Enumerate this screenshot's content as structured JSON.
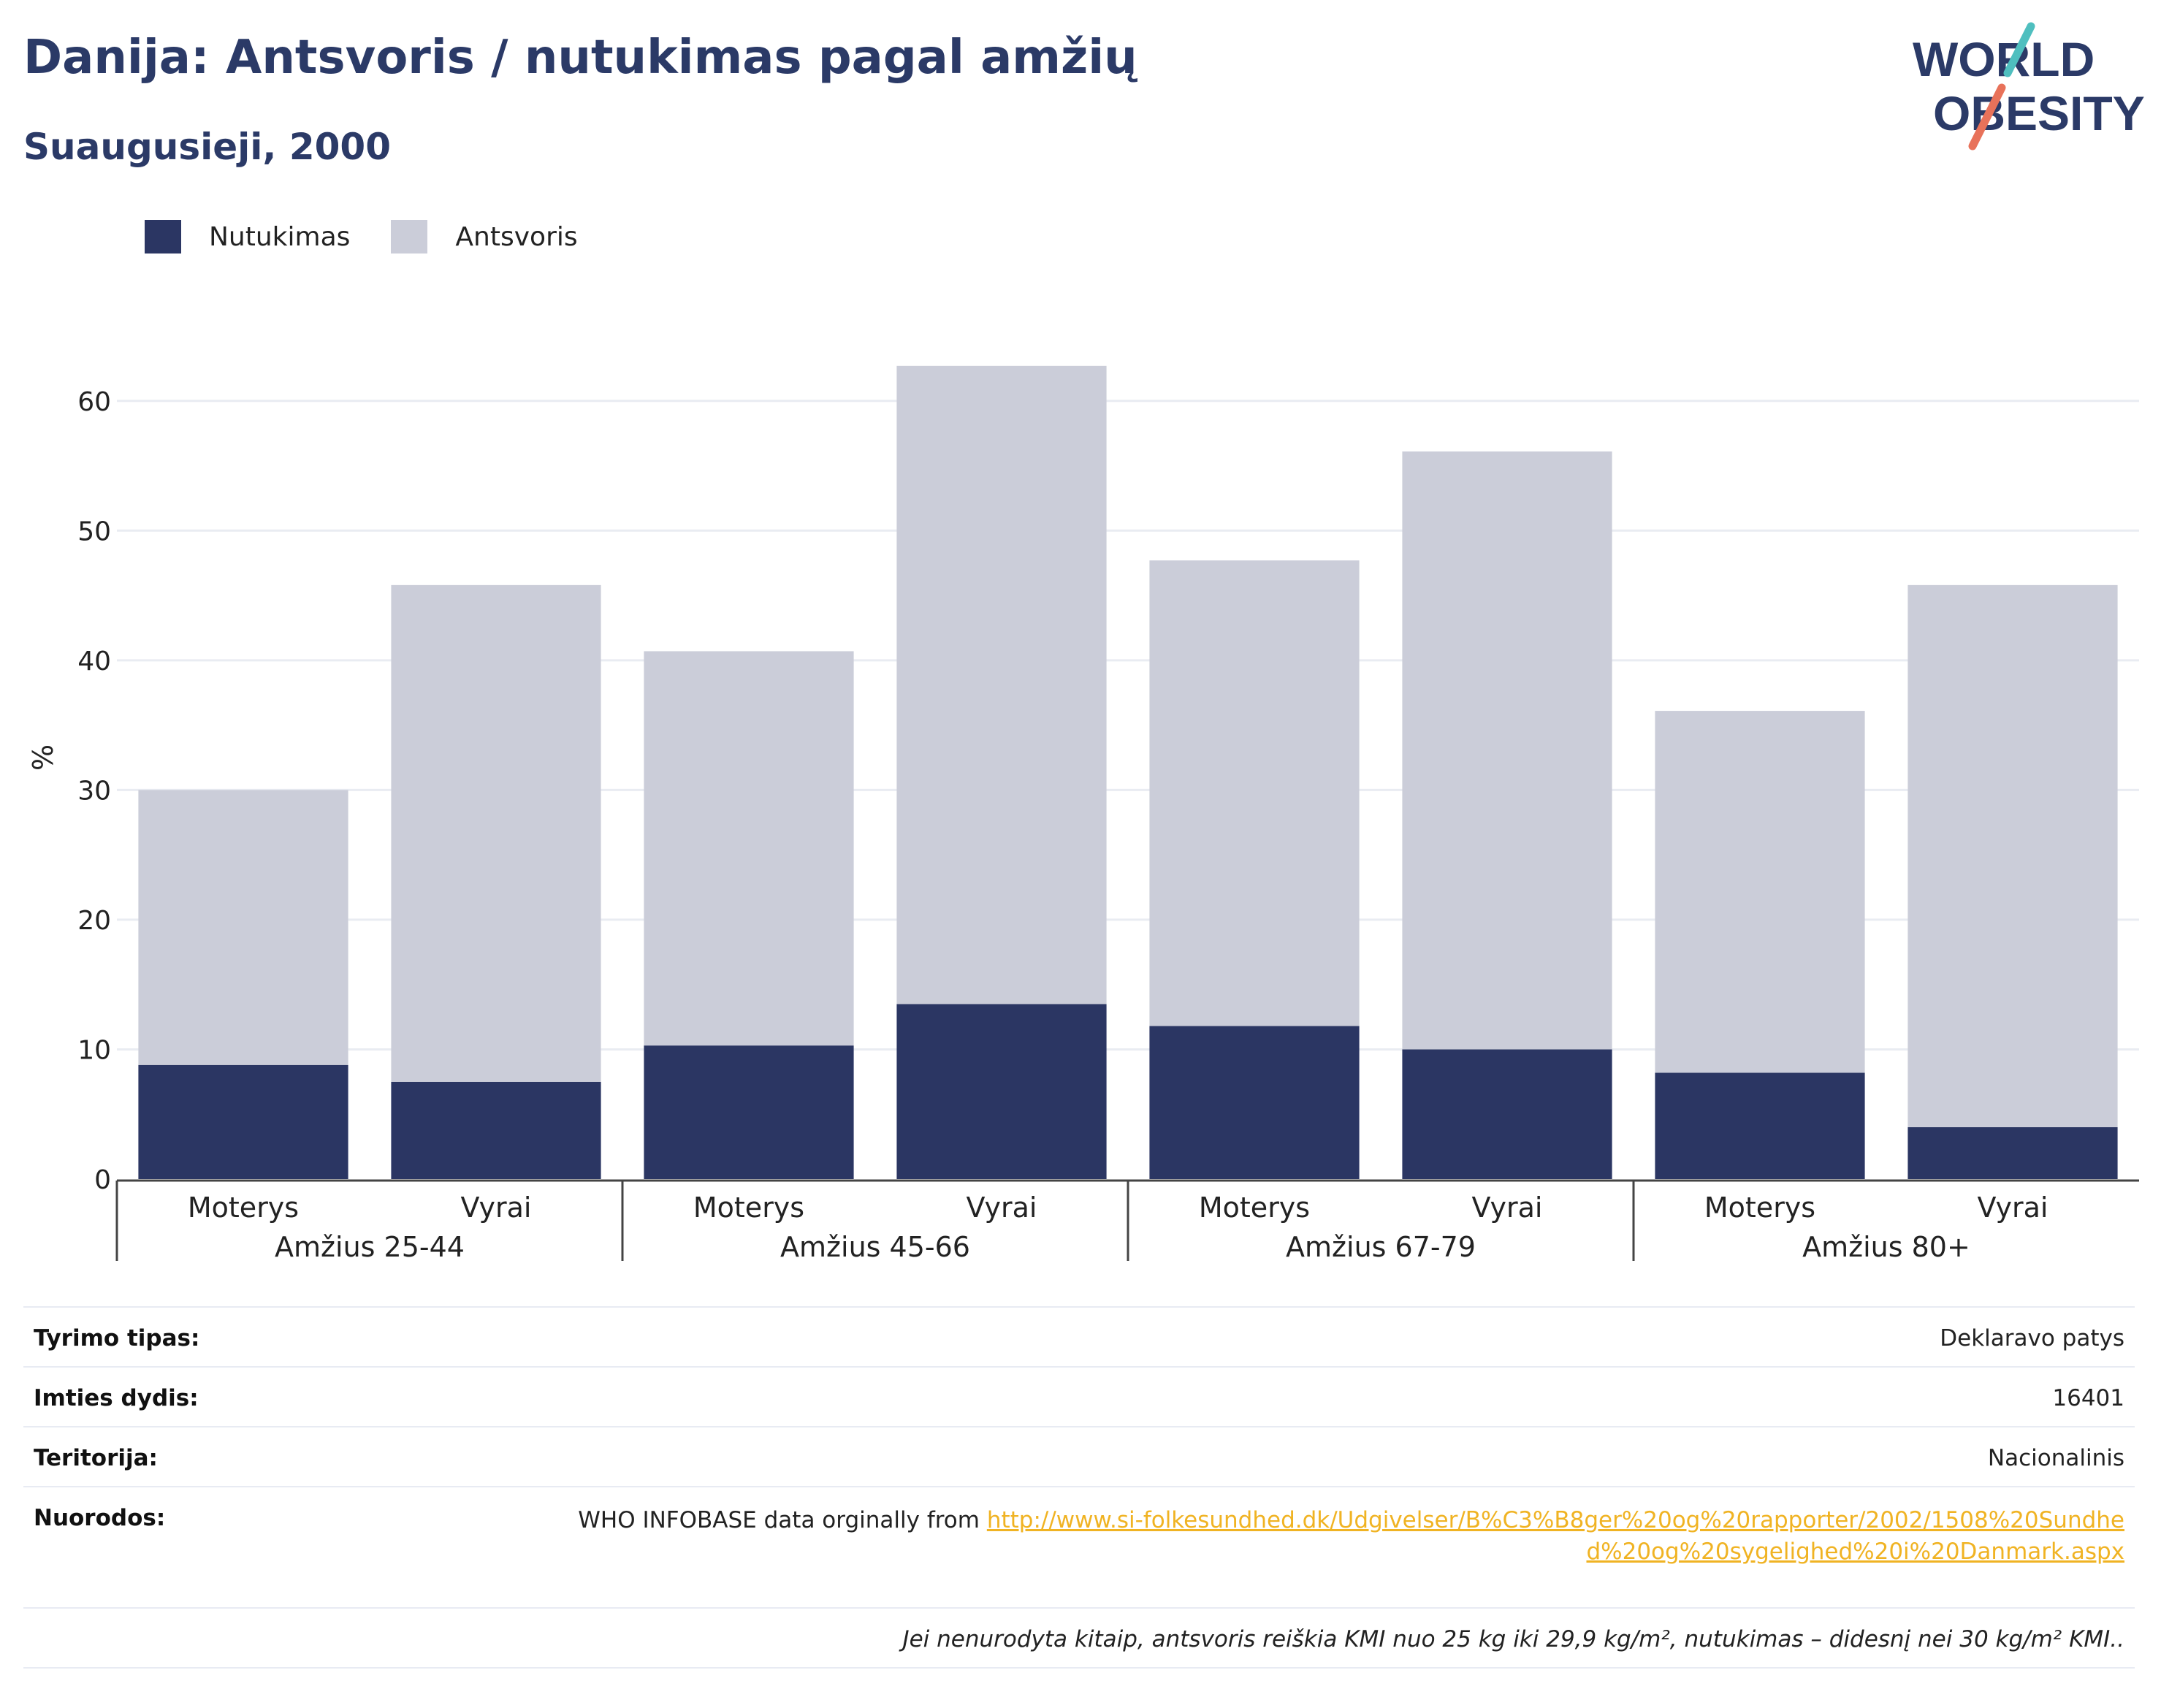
{
  "header": {
    "title": "Danija: Antsvoris / nutukimas pagal amžių",
    "subtitle": "Suaugusieji, 2000"
  },
  "logo": {
    "line1": "WORLD",
    "line2": "OBESITY",
    "stroke_colors": [
      "#4fbfbf",
      "#e8725a"
    ]
  },
  "legend": {
    "items": [
      {
        "label": "Nutukimas",
        "color": "#2b3663"
      },
      {
        "label": "Antsvoris",
        "color": "#cbcdd9"
      }
    ]
  },
  "chart_data": {
    "type": "bar",
    "stacked": true,
    "ylabel": "%",
    "ylim": [
      0,
      65
    ],
    "yticks": [
      0,
      10,
      20,
      30,
      40,
      50,
      60
    ],
    "grid": true,
    "legend_position": "top-left",
    "groups": [
      {
        "label": "Amžius 25-44",
        "categories": [
          "Moterys",
          "Vyrai"
        ]
      },
      {
        "label": "Amžius 45-66",
        "categories": [
          "Moterys",
          "Vyrai"
        ]
      },
      {
        "label": "Amžius 67-79",
        "categories": [
          "Moterys",
          "Vyrai"
        ]
      },
      {
        "label": "Amžius 80+",
        "categories": [
          "Moterys",
          "Vyrai"
        ]
      }
    ],
    "series": [
      {
        "name": "Nutukimas",
        "color": "#2b3663",
        "values": [
          8.8,
          7.5,
          10.3,
          13.5,
          11.8,
          10.0,
          8.2,
          4.0
        ]
      },
      {
        "name": "Antsvoris",
        "color": "#cbcdd9",
        "values": [
          21.2,
          38.3,
          30.4,
          49.2,
          35.9,
          46.1,
          27.9,
          41.8
        ]
      }
    ]
  },
  "info": {
    "rows": [
      {
        "label": "Tyrimo tipas:",
        "value": "Deklaravo patys"
      },
      {
        "label": "Imties dydis:",
        "value": "16401"
      },
      {
        "label": "Teritorija:",
        "value": "Nacionalinis"
      }
    ],
    "refs": {
      "label": "Nuorodos:",
      "prefix": "WHO INFOBASE data orginally from ",
      "link": "http://www.si-folkesundhed.dk/Udgivelser/B%C3%B8ger%20og%20rapporter/2002/1508%20Sundhed%20og%20sygelighed%20i%20Danmark.aspx"
    },
    "note": "Jei nenurodyta kitaip, antsvoris reiškia KMI nuo 25 kg iki 29,9 kg/m², nutukimas – didesnį nei 30 kg/m² KMI.."
  }
}
